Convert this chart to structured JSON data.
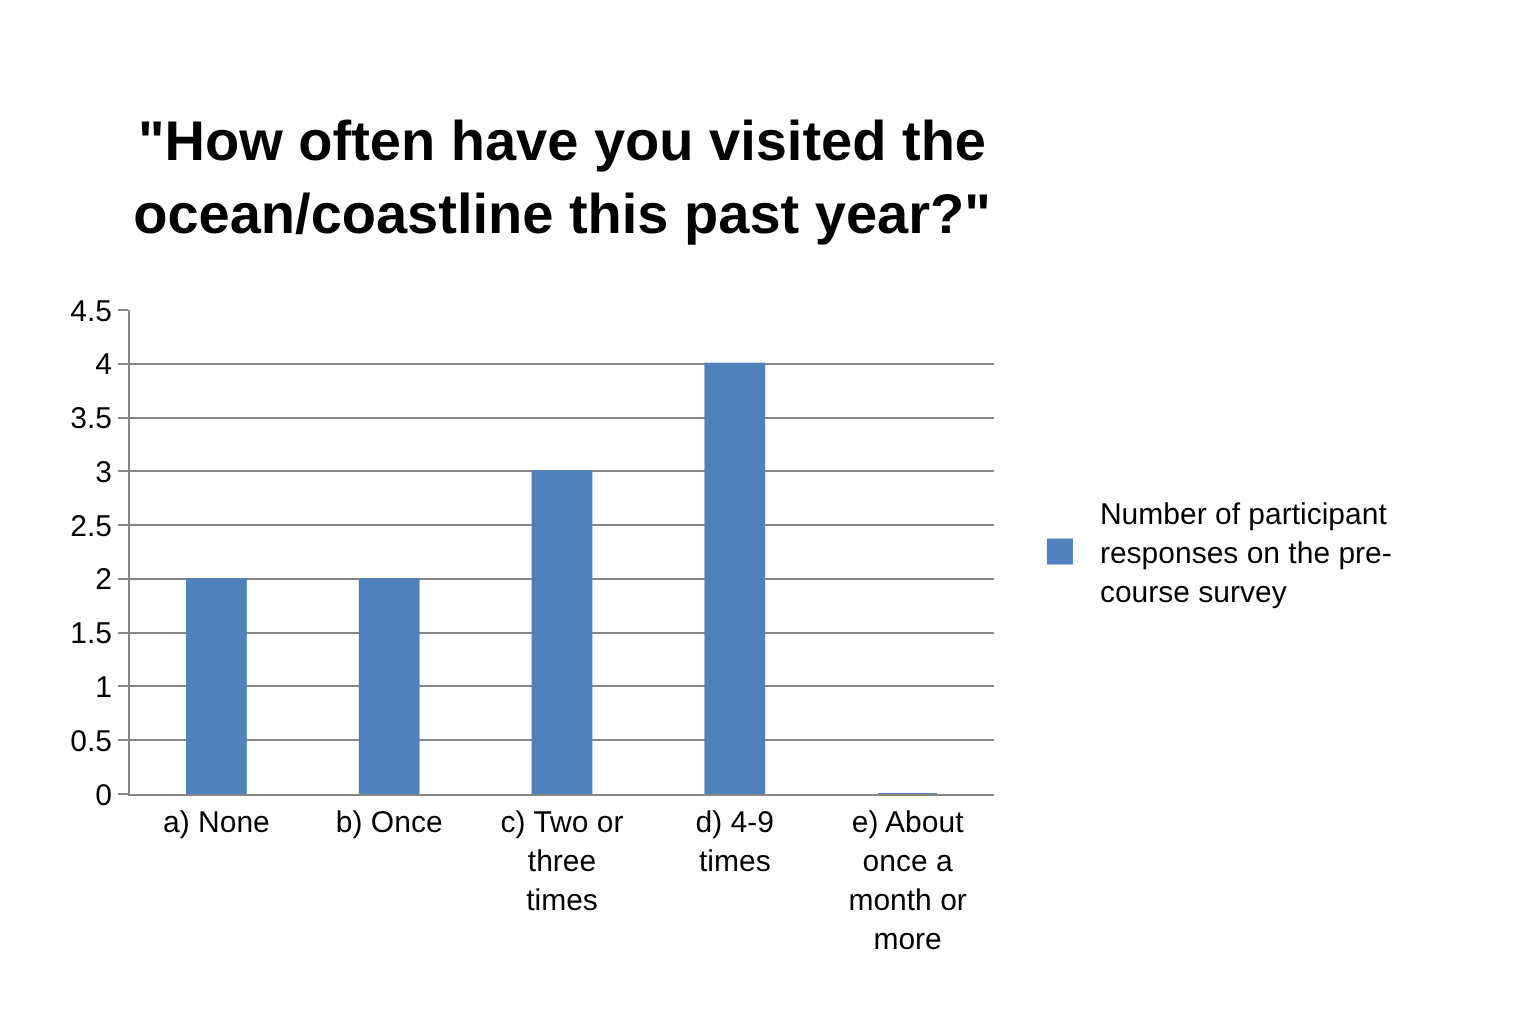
{
  "chart_data": {
    "type": "bar",
    "title": "\"How often have you visited the ocean/coastline this past year?\"",
    "categories": [
      "a) None",
      "b) Once",
      "c) Two or three times",
      "d) 4-9 times",
      "e) About once a month or more"
    ],
    "series": [
      {
        "name": "Number of participant responses on the pre-course survey",
        "color": "#4f81bd",
        "values": [
          2,
          2,
          3,
          4,
          0
        ]
      }
    ],
    "ylim": [
      0,
      4.5
    ],
    "yticks": [
      0,
      0.5,
      1,
      1.5,
      2,
      2.5,
      3,
      3.5,
      4,
      4.5
    ],
    "grid": "y",
    "legend": "right"
  }
}
